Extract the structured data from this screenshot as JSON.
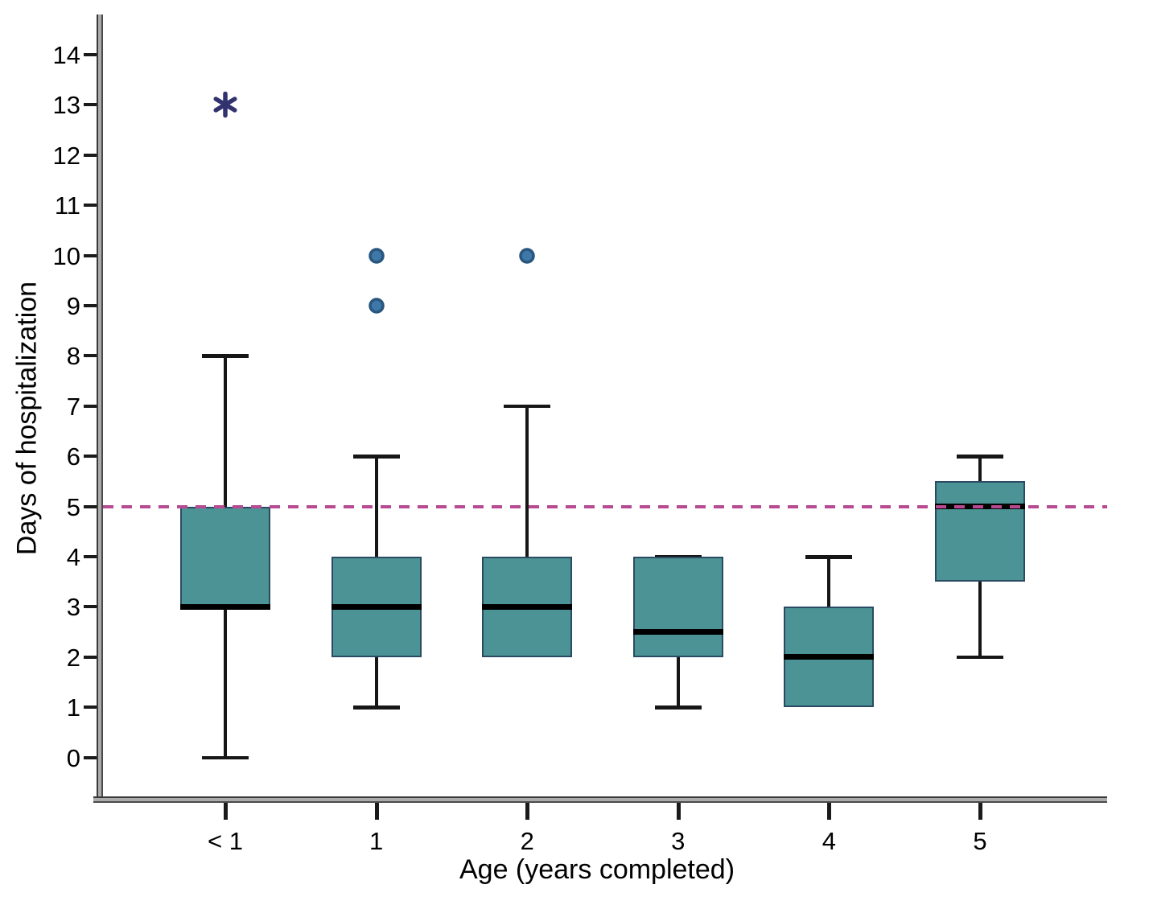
{
  "chart_data": {
    "type": "box",
    "title": "",
    "xlabel": "Age (years completed)",
    "ylabel": "Days of hospitalization",
    "categories": [
      "< 1",
      "1",
      "2",
      "3",
      "4",
      "5"
    ],
    "y_ticks": [
      0,
      1,
      2,
      3,
      4,
      5,
      6,
      7,
      8,
      9,
      10,
      11,
      12,
      13,
      14
    ],
    "ylim": [
      0,
      14
    ],
    "grid": false,
    "legend": "none",
    "reference_line": {
      "value": 5,
      "style": "dashed",
      "orientation": "horizontal"
    },
    "series": [
      {
        "category": "< 1",
        "whisker_low": 0,
        "q1": 3,
        "median": 3,
        "q3": 5,
        "whisker_high": 8,
        "outliers": [
          {
            "value": 13,
            "marker": "asterisk"
          }
        ]
      },
      {
        "category": "1",
        "whisker_low": 1,
        "q1": 2,
        "median": 3,
        "q3": 4,
        "whisker_high": 6,
        "outliers": [
          {
            "value": 9,
            "marker": "circle"
          },
          {
            "value": 10,
            "marker": "circle"
          }
        ]
      },
      {
        "category": "2",
        "whisker_low": null,
        "q1": 2,
        "median": 3,
        "q3": 4,
        "whisker_high": 7,
        "outliers": [
          {
            "value": 10,
            "marker": "circle"
          }
        ]
      },
      {
        "category": "3",
        "whisker_low": 1,
        "q1": 2,
        "median": 2.5,
        "q3": 4,
        "whisker_high": 4,
        "outliers": []
      },
      {
        "category": "4",
        "whisker_low": null,
        "q1": 1,
        "median": 2,
        "q3": 3,
        "whisker_high": 4,
        "outliers": []
      },
      {
        "category": "5",
        "whisker_low": 2,
        "q1": 3.5,
        "median": 5,
        "q3": 5.5,
        "whisker_high": 6,
        "outliers": []
      }
    ],
    "colors": {
      "box_fill": "#4b9394",
      "box_border": "#2a4b63",
      "median": "#000000",
      "whisker": "#161616",
      "outlier_circle_fill": "#3e78a8",
      "outlier_circle_border": "#29567f",
      "outlier_asterisk": "#32336e",
      "reference_line": "#b84a92",
      "tick": "#1a1a1a",
      "text": "#000000"
    }
  }
}
